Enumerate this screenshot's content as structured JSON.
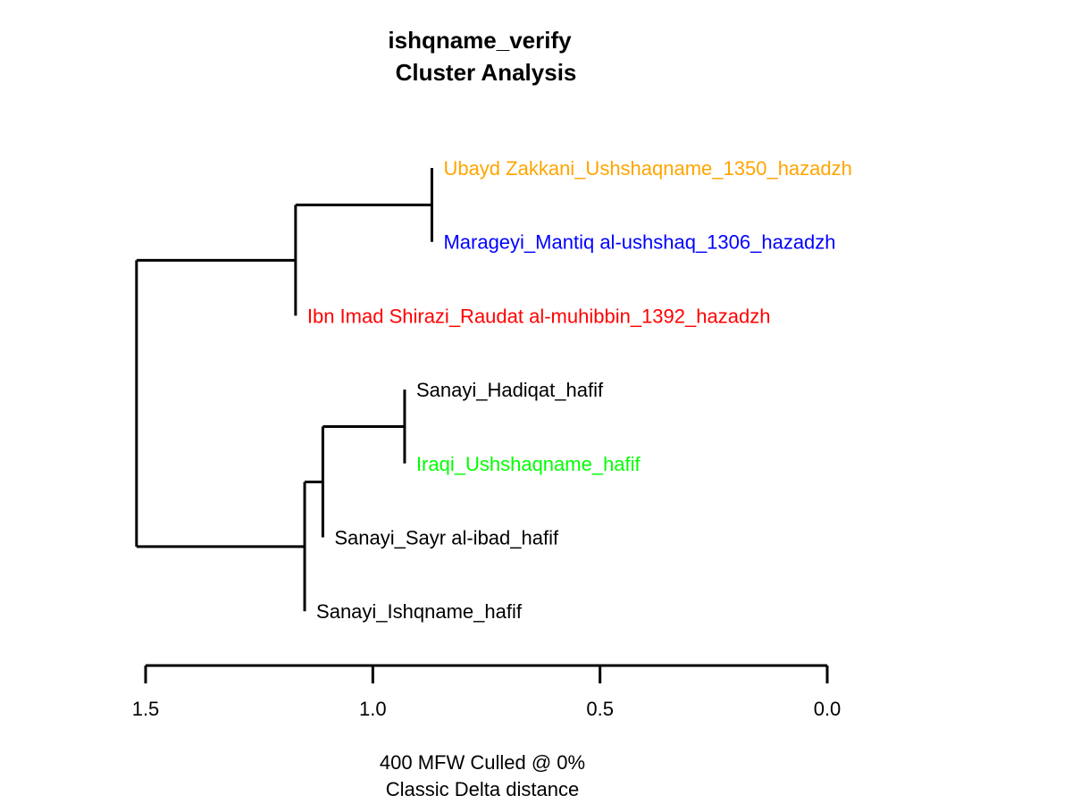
{
  "chart_data": {
    "type": "dendrogram",
    "title_lines": [
      "ishqname_verify",
      "Cluster Analysis"
    ],
    "xlabel_lines": [
      "400 MFW  Culled @ 0%",
      "Classic Delta distance"
    ],
    "x_axis": {
      "range": [
        1.5,
        0.0
      ],
      "ticks": [
        1.5,
        1.0,
        0.5,
        0.0
      ],
      "tick_labels": [
        "1.5",
        "1.0",
        "0.5",
        "0.0"
      ]
    },
    "leaves": [
      {
        "label": "Ubayd Zakkani_Ushshaqname_1350_hazadzh",
        "color": "#FFA500"
      },
      {
        "label": "Marageyi_Mantiq al-ushshaq_1306_hazadzh",
        "color": "#0000FF"
      },
      {
        "label": "Ibn Imad Shirazi_Raudat al-muhibbin_1392_hazadzh",
        "color": "#FF0000"
      },
      {
        "label": "Sanayi_Hadiqat_hafif",
        "color": "#000000"
      },
      {
        "label": "Iraqi_Ushshaqname_hafif",
        "color": "#00FF00"
      },
      {
        "label": "Sanayi_Sayr al-ibad_hafif",
        "color": "#000000"
      },
      {
        "label": "Sanayi_Ishqname_hafif",
        "color": "#000000"
      }
    ],
    "merges": [
      {
        "left": 0,
        "right": 1,
        "height": 0.87
      },
      {
        "left": 3,
        "right": 4,
        "height": 0.93
      },
      {
        "left": "m0",
        "right": 2,
        "height": 1.17
      },
      {
        "left": "m1",
        "right": 5,
        "height": 1.11
      },
      {
        "left": "m3",
        "right": 6,
        "height": 1.15
      },
      {
        "left": "m2",
        "right": "m4",
        "height": 1.52
      }
    ]
  }
}
